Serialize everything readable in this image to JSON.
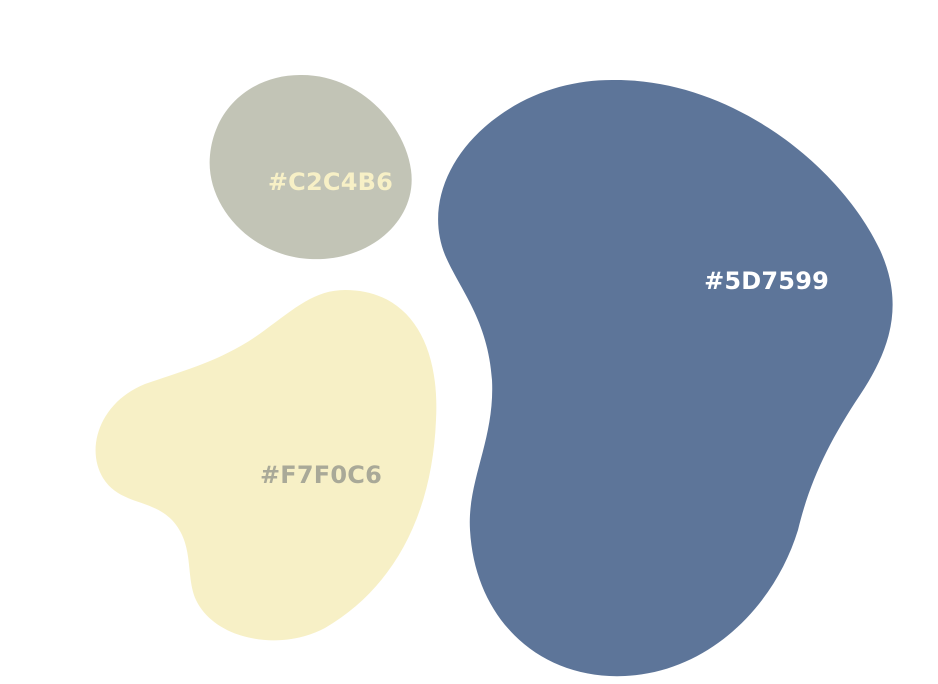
{
  "palette": {
    "swatches": [
      {
        "id": "gray",
        "hex": "#C2C4B6",
        "label": "#C2C4B6",
        "label_color": "#F7F0C6"
      },
      {
        "id": "blue",
        "hex": "#5D7599",
        "label": "#5D7599",
        "label_color": "#FFFFFF"
      },
      {
        "id": "cream",
        "hex": "#F7F0C6",
        "label": "#F7F0C6",
        "label_color": "#A9A998"
      }
    ]
  }
}
